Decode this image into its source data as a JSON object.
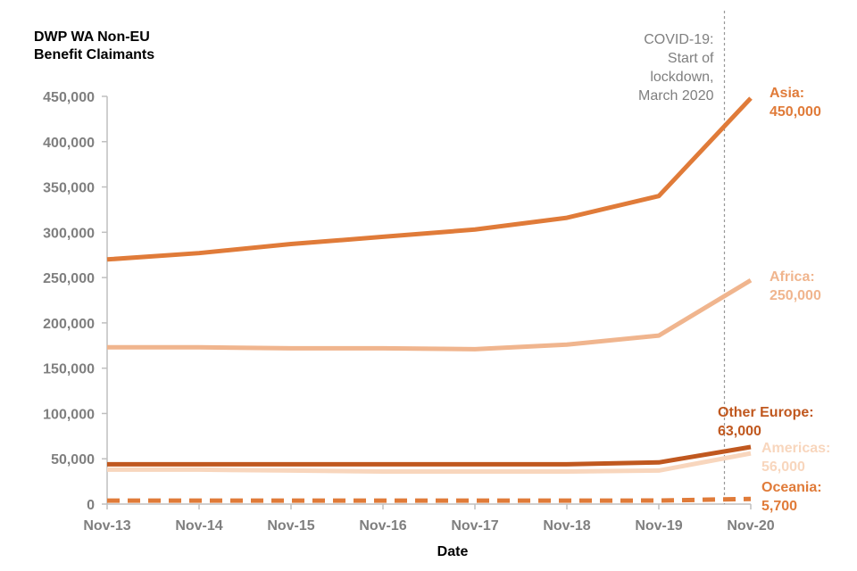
{
  "chart_data": {
    "type": "line",
    "title": [
      "DWP WA Non-EU",
      "Benefit Claimants"
    ],
    "xlabel": "Date",
    "ylabel": "",
    "ylim": [
      0,
      450000
    ],
    "yticks": [
      0,
      50000,
      100000,
      150000,
      200000,
      250000,
      300000,
      350000,
      400000,
      450000
    ],
    "ytick_labels": [
      "0",
      "50,000",
      "100,000",
      "150,000",
      "200,000",
      "250,000",
      "300,000",
      "350,000",
      "400,000",
      "450,000"
    ],
    "categories": [
      "Nov-13",
      "Nov-14",
      "Nov-15",
      "Nov-16",
      "Nov-17",
      "Nov-18",
      "Nov-19",
      "Nov-20"
    ],
    "grid": false,
    "annotation": {
      "text": [
        "COVID-19:",
        "Start of",
        "lockdown,",
        "March 2020"
      ],
      "x": 6.5
    },
    "series": [
      {
        "name": "Asia",
        "color": "#E07B39",
        "dashed": false,
        "x": [
          0,
          1,
          2,
          3,
          4,
          5,
          6,
          7
        ],
        "values": [
          270000,
          277000,
          287000,
          295000,
          303000,
          316000,
          340000,
          448000
        ],
        "label": [
          "Asia:",
          "450,000"
        ]
      },
      {
        "name": "Africa",
        "color": "#F0B58E",
        "dashed": false,
        "x": [
          0,
          1,
          2,
          3,
          4,
          5,
          6,
          7
        ],
        "values": [
          173000,
          173000,
          172000,
          172000,
          171000,
          176000,
          186000,
          247000
        ],
        "label": [
          "Africa:",
          "250,000"
        ]
      },
      {
        "name": "Other Europe",
        "color": "#C0581F",
        "dashed": false,
        "x": [
          0,
          1,
          2,
          3,
          4,
          5,
          6,
          7
        ],
        "values": [
          44000,
          44000,
          44000,
          44000,
          44000,
          44000,
          46000,
          63000
        ],
        "label": [
          "Other Europe:",
          "63,000"
        ]
      },
      {
        "name": "Americas",
        "color": "#F8D6BD",
        "dashed": false,
        "x": [
          0,
          1,
          2,
          3,
          4,
          5,
          6,
          7
        ],
        "values": [
          38000,
          38000,
          37000,
          36000,
          36000,
          36000,
          37000,
          56000
        ],
        "label": [
          "Americas:",
          "56,000"
        ]
      },
      {
        "name": "Oceania",
        "color": "#E07B39",
        "dashed": true,
        "x": [
          0,
          1,
          2,
          3,
          4,
          5,
          6,
          7
        ],
        "values": [
          3800,
          3800,
          3800,
          3800,
          3800,
          3800,
          3900,
          5700
        ],
        "label": [
          "Oceania:",
          "5,700"
        ]
      }
    ]
  }
}
